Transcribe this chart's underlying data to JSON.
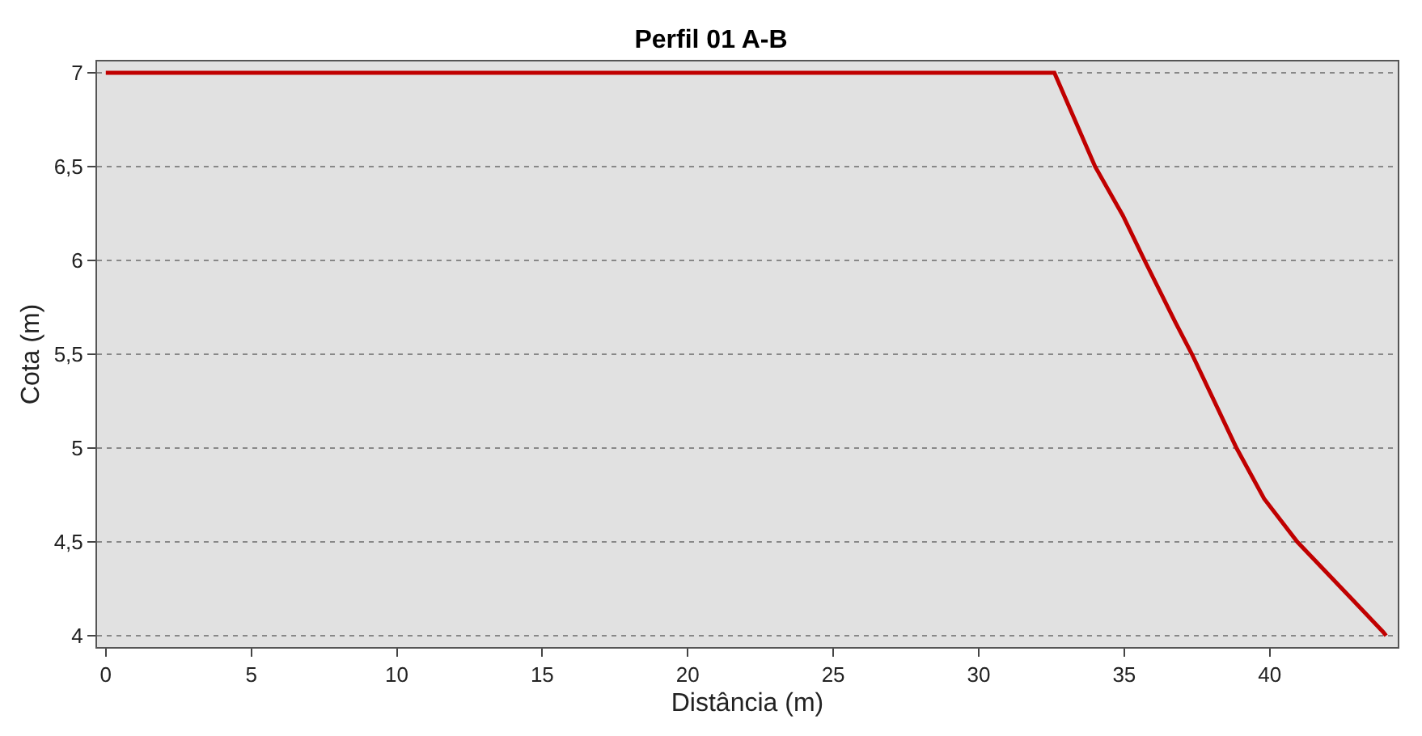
{
  "chart_data": {
    "type": "line",
    "title": "Perfil 01 A-B",
    "xlabel": "Distância (m)",
    "ylabel": "Cota (m)",
    "series": [
      {
        "color": "#c00000",
        "x": [
          0,
          32.6,
          33.3,
          34.0,
          34.95,
          35.7,
          36.76,
          37.33,
          38.86,
          39.81,
          40.95,
          42.86,
          43.9,
          44.0
        ],
        "values": [
          7,
          7,
          6.75,
          6.5,
          6.24,
          6.0,
          5.67,
          5.5,
          5.0,
          4.73,
          4.5,
          4.19,
          4.02,
          4.0
        ]
      }
    ],
    "xlim": [
      -0.3,
      44.4
    ],
    "xticks": [
      0,
      5,
      10,
      15,
      20,
      25,
      30,
      35,
      40
    ],
    "ylim": [
      3.94,
      7.06
    ],
    "yticks": [
      {
        "value": 4,
        "label": "4"
      },
      {
        "value": 4.5,
        "label": "4,5"
      },
      {
        "value": 5,
        "label": "5"
      },
      {
        "value": 5.5,
        "label": "5,5"
      },
      {
        "value": 6,
        "label": "6"
      },
      {
        "value": 6.5,
        "label": "6,5"
      },
      {
        "value": 7,
        "label": "7"
      }
    ],
    "grid": "y",
    "legend": false,
    "marker": "none",
    "line_style": "solid"
  }
}
